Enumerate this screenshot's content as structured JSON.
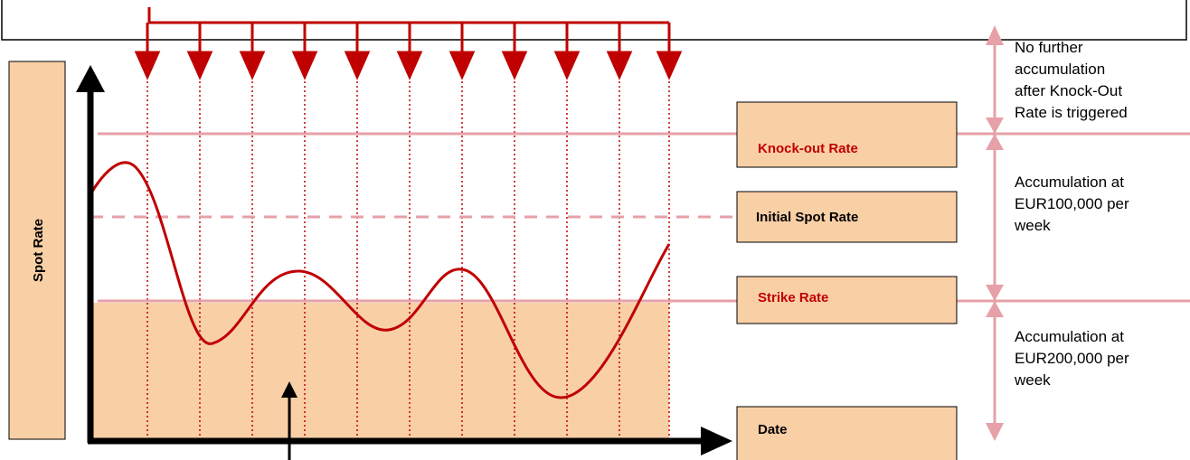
{
  "diagram": {
    "y_axis_label": "Spot Rate",
    "levels": {
      "knock_out": "Knock-out Rate",
      "initial_spot": "Initial Spot Rate",
      "strike": "Strike Rate"
    },
    "x_axis_label": "Date",
    "annotations": [
      [
        "No further",
        "accumulation",
        "after Knock-Out",
        "Rate is triggered"
      ],
      [
        "Accumulation at",
        "EUR100,000 per",
        "week"
      ],
      [
        "Accumulation at",
        "EUR200,000 per",
        "week"
      ]
    ]
  }
}
